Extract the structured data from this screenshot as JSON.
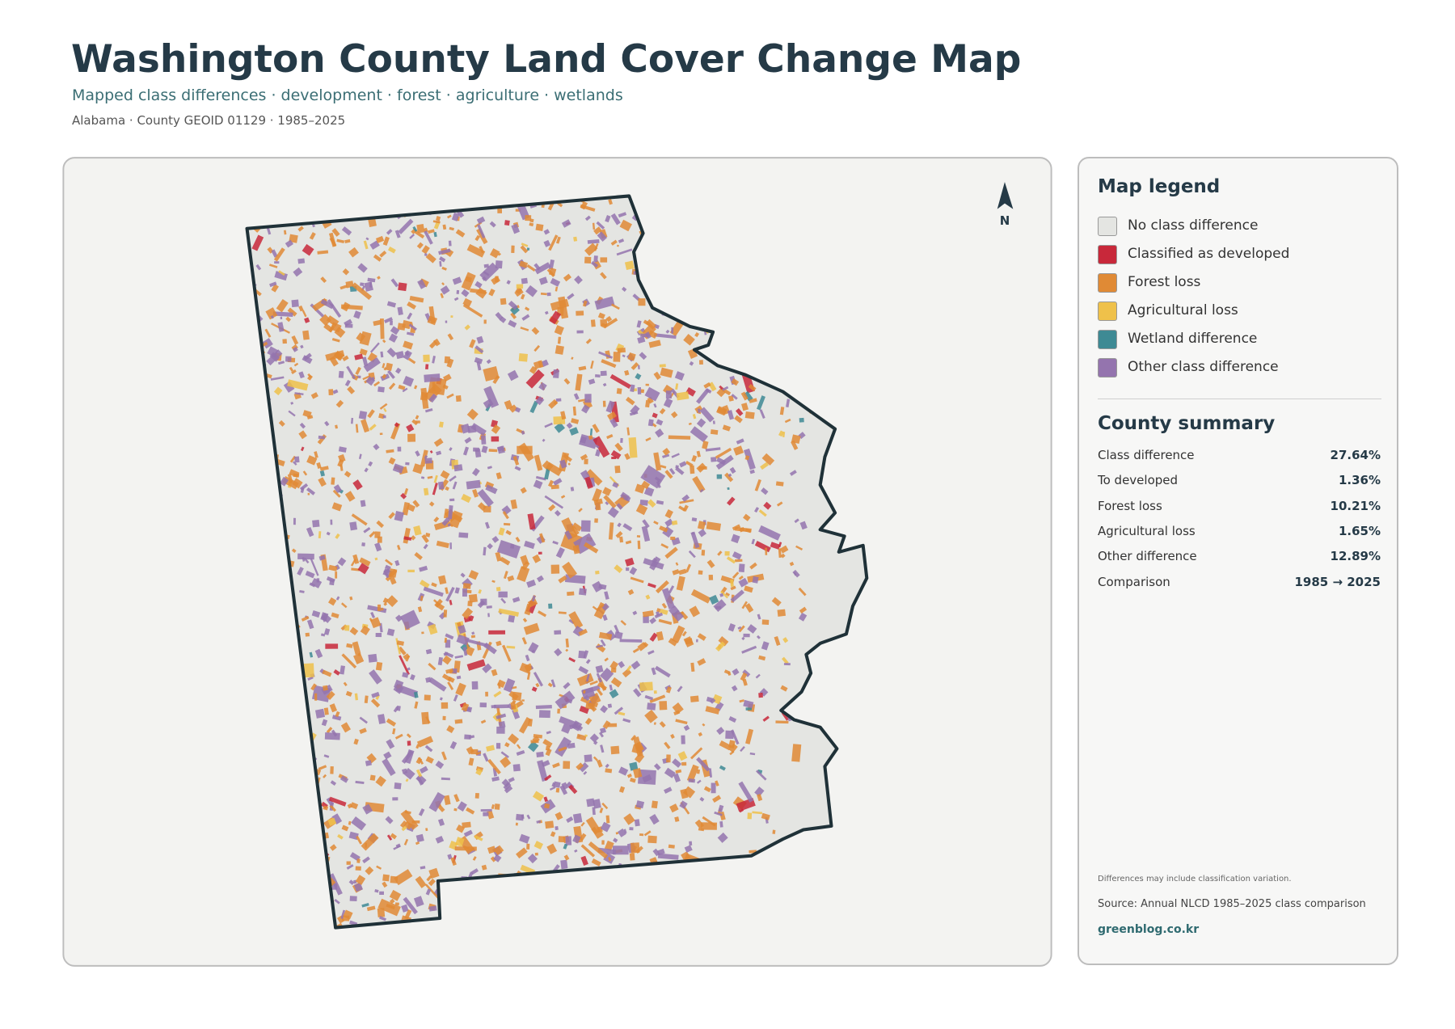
{
  "header": {
    "title": "Washington County Land Cover Change Map",
    "subtitle": "Mapped class differences · development · forest · agriculture · wetlands",
    "meta": "Alabama · County GEOID 01129 · 1985–2025"
  },
  "map": {
    "north_label": "N"
  },
  "legend": {
    "title": "Map legend",
    "items": [
      {
        "label": "No class difference",
        "color": "#e4e5e2"
      },
      {
        "label": "Classified as developed",
        "color": "#c8283a"
      },
      {
        "label": "Forest loss",
        "color": "#e08a35"
      },
      {
        "label": "Agricultural loss",
        "color": "#efc14a"
      },
      {
        "label": "Wetland difference",
        "color": "#3e8a94"
      },
      {
        "label": "Other class difference",
        "color": "#9474ae"
      }
    ]
  },
  "summary": {
    "title": "County summary",
    "rows": [
      {
        "label": "Class difference",
        "value": "27.64%"
      },
      {
        "label": "To developed",
        "value": "1.36%"
      },
      {
        "label": "Forest loss",
        "value": "10.21%"
      },
      {
        "label": "Agricultural loss",
        "value": "1.65%"
      },
      {
        "label": "Other difference",
        "value": "12.89%"
      },
      {
        "label": "Comparison",
        "value": "1985 → 2025"
      }
    ]
  },
  "notes": {
    "caveat": "Differences may include classification variation.",
    "source": "Source: Annual NLCD 1985–2025 class comparison",
    "site": "greenblog.co.kr"
  }
}
